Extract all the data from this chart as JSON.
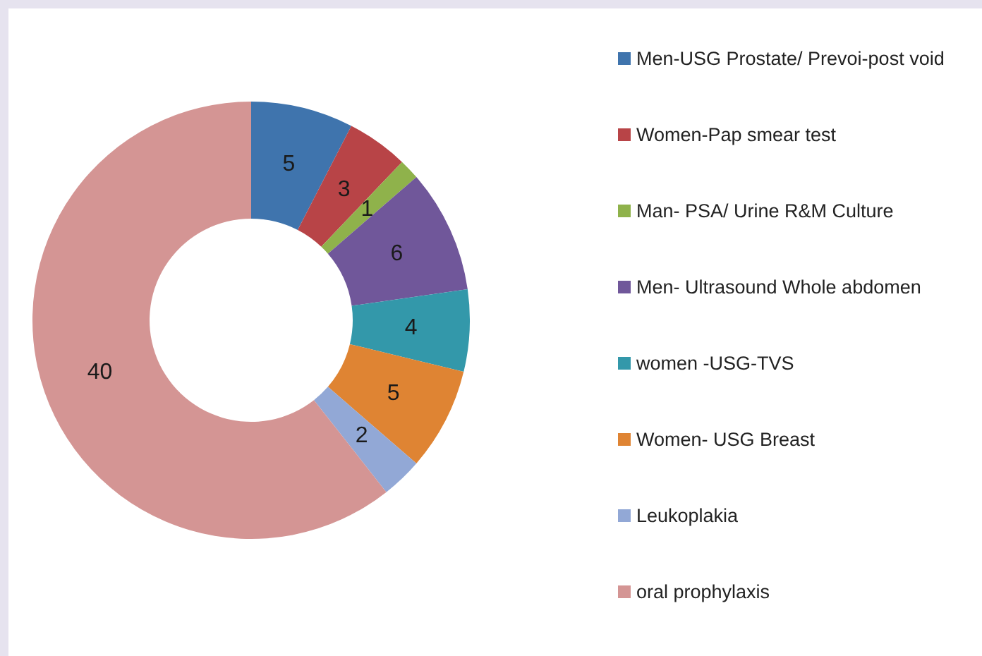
{
  "chart_data": {
    "type": "donut",
    "categories": [
      "Men-USG Prostate/ Prevoi-post void",
      "Women-Pap smear test",
      "Man- PSA/ Urine R&M Culture",
      "Men- Ultrasound Whole abdomen",
      "women -USG-TVS",
      "Women- USG Breast",
      "Leukoplakia",
      "oral prophylaxis"
    ],
    "values": [
      5,
      3,
      1,
      6,
      4,
      5,
      2,
      40
    ],
    "colors": [
      "#3f74ad",
      "#b84447",
      "#8fb24b",
      "#70579a",
      "#3398aa",
      "#df8433",
      "#92a8d6",
      "#d49594"
    ],
    "data_labels": true,
    "legend": "right"
  }
}
